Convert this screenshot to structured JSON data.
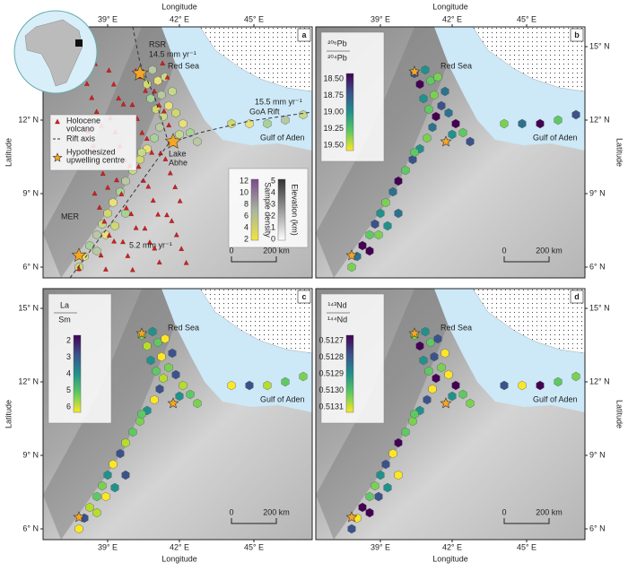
{
  "axes": {
    "longitude": "Longitude",
    "latitude": "Latitude",
    "x_ticks": [
      "39° E",
      "42° E",
      "45° E"
    ],
    "y_ticks": [
      "15° N",
      "12° N",
      "9° N",
      "6° N"
    ]
  },
  "panels": [
    {
      "label": "a",
      "annotations": [
        "RSR",
        "14.5 mm yr⁻¹",
        "Red Sea",
        "15.5 mm yr⁻¹",
        "GoA Rift",
        "Gulf of Aden",
        "Lake",
        "Abhe",
        "MER",
        "5.2 mm yr⁻¹"
      ],
      "legend": [
        "Holocene",
        "volcano",
        "Rift axis",
        "Hypothesized",
        "upwelling centre"
      ],
      "sample_density": {
        "title": "Sample density",
        "ticks": [
          "12",
          "10",
          "8",
          "6",
          "4",
          "2"
        ]
      },
      "elevation": {
        "title": "Elevation (km)",
        "ticks": [
          "5",
          "4",
          "3",
          "2",
          "1",
          "0"
        ]
      },
      "scale_bar": [
        "0",
        "200 km"
      ]
    },
    {
      "label": "b",
      "annotations": [
        "Red Sea",
        "Gulf of Aden"
      ],
      "colorbar": {
        "title_top": "²⁰⁶Pb",
        "title_bottom": "²⁰⁴Pb",
        "ticks": [
          "18.50",
          "18.75",
          "19.00",
          "19.25",
          "19.50"
        ]
      },
      "scale_bar": [
        "0",
        "200 km"
      ]
    },
    {
      "label": "c",
      "annotations": [
        "Red Sea",
        "Gulf of Aden"
      ],
      "colorbar": {
        "title_top": "La",
        "title_bottom": "Sm",
        "ticks": [
          "2",
          "3",
          "4",
          "5",
          "6"
        ]
      },
      "scale_bar": [
        "0",
        "200 km"
      ]
    },
    {
      "label": "d",
      "annotations": [
        "Red Sea",
        "Gulf of Aden"
      ],
      "colorbar": {
        "title_top": "¹⁴³Nd",
        "title_bottom": "¹⁴⁴Nd",
        "ticks": [
          "0.5127",
          "0.5128",
          "0.5129",
          "0.5130",
          "0.5131"
        ]
      },
      "scale_bar": [
        "0",
        "200 km"
      ]
    }
  ]
}
